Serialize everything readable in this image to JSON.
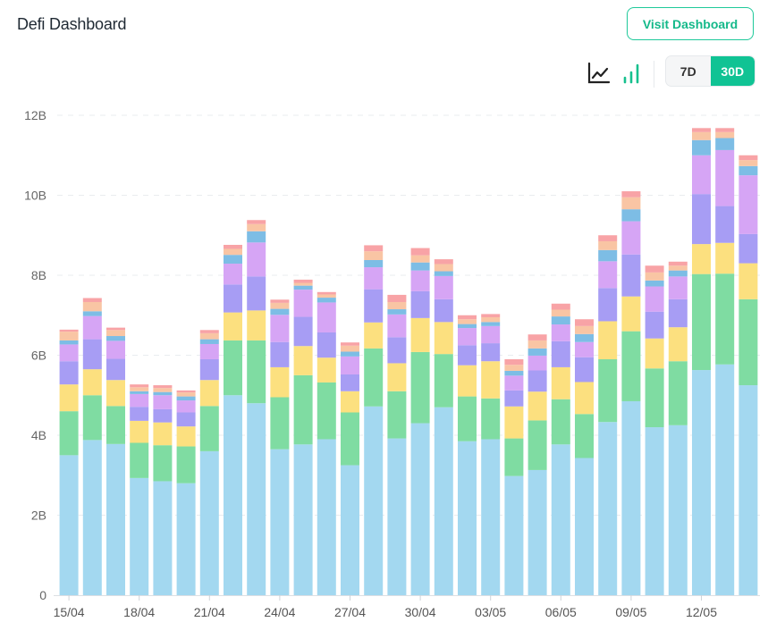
{
  "header": {
    "title": "Defi Dashboard",
    "visit_label": "Visit Dashboard"
  },
  "controls": {
    "line_icon": "line-chart-icon",
    "bar_icon": "bar-chart-icon",
    "range_options": [
      "7D",
      "30D"
    ],
    "selected_range": "30D"
  },
  "colors": {
    "accent": "#10c394",
    "series": [
      "#a3d8f0",
      "#7fdca2",
      "#fce07f",
      "#a79df4",
      "#d6a5f5",
      "#7dbde5",
      "#f9c5a4",
      "#f8a3a6"
    ]
  },
  "chart_data": {
    "type": "bar",
    "stacked": true,
    "ylim": [
      0,
      12
    ],
    "y_ticks": [
      "0",
      "2B",
      "4B",
      "6B",
      "8B",
      "10B",
      "12B"
    ],
    "x_tick_labels": [
      "15/04",
      "18/04",
      "21/04",
      "24/04",
      "27/04",
      "30/04",
      "03/05",
      "06/05",
      "09/05",
      "12/05"
    ],
    "grid": true,
    "categories": [
      "15/04",
      "16/04",
      "17/04",
      "18/04",
      "19/04",
      "20/04",
      "21/04",
      "22/04",
      "23/04",
      "24/04",
      "25/04",
      "26/04",
      "27/04",
      "28/04",
      "29/04",
      "30/04",
      "01/05",
      "02/05",
      "03/05",
      "04/05",
      "05/05",
      "06/05",
      "07/05",
      "08/05",
      "09/05",
      "10/05",
      "11/05",
      "12/05",
      "13/05",
      "14/05"
    ],
    "series": [
      {
        "values": [
          3.5,
          3.88,
          3.78,
          2.93,
          2.85,
          2.8,
          3.6,
          5.0,
          4.8,
          3.65,
          3.77,
          3.9,
          3.25,
          4.72,
          3.92,
          4.3,
          4.7,
          3.85,
          3.9,
          2.98,
          3.13,
          3.77,
          3.43,
          4.33,
          4.85,
          4.2,
          4.25,
          5.63,
          5.77,
          5.25
        ]
      },
      {
        "values": [
          1.1,
          1.12,
          0.95,
          0.88,
          0.9,
          0.92,
          1.13,
          1.37,
          1.57,
          1.3,
          1.73,
          1.42,
          1.32,
          1.45,
          1.18,
          1.78,
          1.33,
          1.12,
          1.02,
          0.94,
          1.24,
          1.13,
          1.1,
          1.57,
          1.75,
          1.47,
          1.6,
          2.4,
          2.27,
          2.15
        ]
      },
      {
        "values": [
          0.67,
          0.65,
          0.65,
          0.55,
          0.57,
          0.5,
          0.65,
          0.7,
          0.75,
          0.75,
          0.73,
          0.62,
          0.53,
          0.65,
          0.7,
          0.85,
          0.8,
          0.78,
          0.93,
          0.8,
          0.72,
          0.8,
          0.8,
          0.95,
          0.87,
          0.75,
          0.85,
          0.75,
          0.77,
          0.9
        ]
      },
      {
        "values": [
          0.58,
          0.75,
          0.53,
          0.35,
          0.33,
          0.35,
          0.52,
          0.7,
          0.85,
          0.63,
          0.73,
          0.63,
          0.42,
          0.83,
          0.65,
          0.67,
          0.57,
          0.5,
          0.45,
          0.4,
          0.53,
          0.65,
          0.62,
          0.83,
          1.05,
          0.67,
          0.7,
          1.25,
          0.92,
          0.73
        ]
      },
      {
        "values": [
          0.42,
          0.58,
          0.45,
          0.32,
          0.35,
          0.3,
          0.38,
          0.52,
          0.85,
          0.68,
          0.68,
          0.75,
          0.45,
          0.55,
          0.57,
          0.52,
          0.58,
          0.43,
          0.43,
          0.37,
          0.37,
          0.42,
          0.38,
          0.67,
          0.83,
          0.63,
          0.57,
          0.97,
          1.4,
          1.47
        ]
      },
      {
        "values": [
          0.1,
          0.12,
          0.12,
          0.07,
          0.08,
          0.1,
          0.12,
          0.22,
          0.28,
          0.15,
          0.1,
          0.12,
          0.12,
          0.18,
          0.13,
          0.2,
          0.12,
          0.1,
          0.1,
          0.12,
          0.18,
          0.2,
          0.2,
          0.28,
          0.3,
          0.15,
          0.15,
          0.38,
          0.3,
          0.23
        ]
      },
      {
        "values": [
          0.22,
          0.23,
          0.15,
          0.1,
          0.1,
          0.1,
          0.15,
          0.15,
          0.18,
          0.15,
          0.07,
          0.08,
          0.15,
          0.22,
          0.18,
          0.18,
          0.18,
          0.12,
          0.12,
          0.15,
          0.2,
          0.17,
          0.2,
          0.22,
          0.3,
          0.2,
          0.12,
          0.2,
          0.15,
          0.15
        ]
      },
      {
        "values": [
          0.05,
          0.1,
          0.06,
          0.07,
          0.07,
          0.05,
          0.08,
          0.1,
          0.1,
          0.08,
          0.08,
          0.06,
          0.08,
          0.15,
          0.18,
          0.18,
          0.12,
          0.1,
          0.08,
          0.14,
          0.15,
          0.15,
          0.17,
          0.15,
          0.15,
          0.17,
          0.1,
          0.1,
          0.1,
          0.12
        ]
      }
    ]
  }
}
